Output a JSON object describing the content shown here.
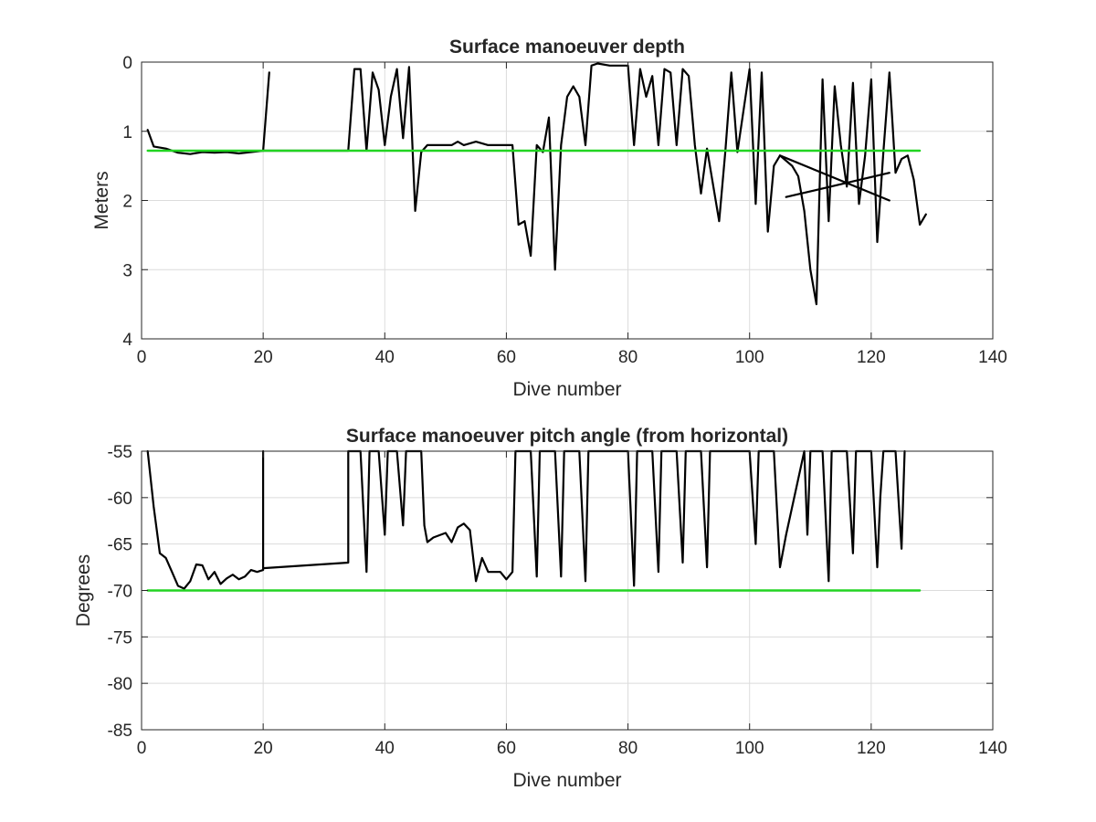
{
  "chart_data": [
    {
      "type": "line",
      "title": "Surface manoeuver depth",
      "xlabel": "Dive number",
      "ylabel": "Meters",
      "xlim": [
        0,
        140
      ],
      "ylim": [
        0,
        4
      ],
      "y_reversed": true,
      "grid": true,
      "xticks": [
        0,
        20,
        40,
        60,
        80,
        100,
        120,
        140
      ],
      "yticks": [
        0,
        1,
        2,
        3,
        4
      ],
      "series": [
        {
          "color": "#000000",
          "segments": [
            [
              [
                1,
                0.98
              ],
              [
                2,
                1.22
              ],
              [
                4,
                1.25
              ],
              [
                6,
                1.31
              ],
              [
                8,
                1.33
              ],
              [
                10,
                1.3
              ],
              [
                12,
                1.31
              ],
              [
                14,
                1.3
              ],
              [
                16,
                1.32
              ],
              [
                18,
                1.3
              ],
              [
                20,
                1.28
              ],
              [
                21,
                0.15
              ]
            ],
            [
              [
                20,
                1.28
              ],
              [
                34,
                1.28
              ],
              [
                35,
                0.1
              ],
              [
                36,
                0.1
              ],
              [
                37,
                1.28
              ],
              [
                38,
                0.15
              ],
              [
                39,
                0.4
              ],
              [
                40,
                1.2
              ],
              [
                41,
                0.5
              ],
              [
                42,
                0.1
              ],
              [
                43,
                1.1
              ],
              [
                44,
                0.07
              ],
              [
                45,
                2.15
              ],
              [
                46,
                1.3
              ],
              [
                47,
                1.2
              ],
              [
                49,
                1.2
              ],
              [
                51,
                1.2
              ],
              [
                52,
                1.15
              ],
              [
                53,
                1.2
              ],
              [
                55,
                1.15
              ],
              [
                57,
                1.2
              ],
              [
                59,
                1.2
              ],
              [
                61,
                1.2
              ],
              [
                62,
                2.35
              ],
              [
                63,
                2.3
              ],
              [
                64,
                2.8
              ],
              [
                65,
                1.2
              ],
              [
                66,
                1.3
              ],
              [
                67,
                0.8
              ],
              [
                68,
                3.0
              ],
              [
                69,
                1.2
              ],
              [
                70,
                0.5
              ],
              [
                71,
                0.35
              ],
              [
                72,
                0.5
              ],
              [
                73,
                1.2
              ],
              [
                74,
                0.05
              ],
              [
                75,
                0.02
              ],
              [
                77,
                0.05
              ],
              [
                80,
                0.05
              ],
              [
                81,
                1.2
              ],
              [
                82,
                0.1
              ],
              [
                83,
                0.5
              ],
              [
                84,
                0.2
              ],
              [
                85,
                1.2
              ],
              [
                86,
                0.1
              ],
              [
                87,
                0.15
              ],
              [
                88,
                1.2
              ],
              [
                89,
                0.1
              ],
              [
                90,
                0.2
              ],
              [
                91,
                1.2
              ],
              [
                92,
                1.9
              ],
              [
                93,
                1.25
              ],
              [
                95,
                2.3
              ],
              [
                96,
                1.3
              ],
              [
                97,
                0.15
              ],
              [
                98,
                1.3
              ],
              [
                100,
                0.1
              ],
              [
                101,
                2.05
              ],
              [
                102,
                0.15
              ],
              [
                103,
                2.45
              ],
              [
                104,
                1.5
              ],
              [
                105,
                1.35
              ],
              [
                107,
                1.5
              ],
              [
                108,
                1.65
              ],
              [
                109,
                2.15
              ],
              [
                110,
                3.0
              ],
              [
                111,
                3.5
              ],
              [
                112,
                0.25
              ],
              [
                113,
                2.3
              ],
              [
                114,
                0.35
              ],
              [
                115,
                1.2
              ],
              [
                116,
                1.8
              ],
              [
                117,
                0.3
              ],
              [
                118,
                2.05
              ],
              [
                119,
                1.35
              ],
              [
                120,
                0.25
              ],
              [
                121,
                2.6
              ],
              [
                122,
                1.3
              ],
              [
                123,
                0.15
              ],
              [
                124,
                1.6
              ],
              [
                125,
                1.4
              ],
              [
                126,
                1.35
              ],
              [
                127,
                1.7
              ],
              [
                128,
                2.35
              ],
              [
                129,
                2.2
              ]
            ],
            [
              [
                105,
                1.35
              ],
              [
                123,
                2.0
              ]
            ],
            [
              [
                106,
                1.95
              ],
              [
                123,
                1.6
              ]
            ]
          ]
        },
        {
          "color": "#22d422",
          "points": [
            [
              1,
              1.28
            ],
            [
              128,
              1.28
            ]
          ]
        }
      ]
    },
    {
      "type": "line",
      "title": "Surface manoeuver pitch angle (from horizontal)",
      "xlabel": "Dive number",
      "ylabel": "Degrees",
      "xlim": [
        0,
        140
      ],
      "ylim": [
        -85,
        -55
      ],
      "grid": true,
      "xticks": [
        0,
        20,
        40,
        60,
        80,
        100,
        120,
        140
      ],
      "yticks": [
        -55,
        -60,
        -65,
        -70,
        -75,
        -80,
        -85
      ],
      "series": [
        {
          "color": "#000000",
          "segments": [
            [
              [
                1,
                -55
              ],
              [
                2,
                -61
              ],
              [
                3,
                -66
              ],
              [
                4,
                -66.5
              ],
              [
                5,
                -68
              ],
              [
                6,
                -69.5
              ],
              [
                7,
                -69.8
              ],
              [
                8,
                -69
              ],
              [
                9,
                -67.2
              ],
              [
                10,
                -67.3
              ],
              [
                11,
                -68.8
              ],
              [
                12,
                -68
              ],
              [
                13,
                -69.3
              ],
              [
                14,
                -68.7
              ],
              [
                15,
                -68.3
              ],
              [
                16,
                -68.8
              ],
              [
                17,
                -68.5
              ],
              [
                18,
                -67.8
              ],
              [
                19,
                -68
              ],
              [
                20,
                -67.8
              ],
              [
                20,
                -55
              ]
            ],
            [
              [
                20,
                -67.6
              ],
              [
                34,
                -67
              ],
              [
                34,
                -55
              ],
              [
                35,
                -55
              ],
              [
                36,
                -55
              ],
              [
                37,
                -68
              ],
              [
                37.5,
                -55
              ],
              [
                38,
                -55
              ],
              [
                39,
                -55
              ],
              [
                40,
                -64
              ],
              [
                40.5,
                -55
              ],
              [
                42,
                -55
              ],
              [
                43,
                -63
              ],
              [
                43.5,
                -55
              ],
              [
                45,
                -55
              ],
              [
                46,
                -55
              ],
              [
                46.5,
                -63
              ],
              [
                47,
                -64.8
              ],
              [
                48,
                -64.3
              ],
              [
                50,
                -63.8
              ],
              [
                51,
                -64.8
              ],
              [
                52,
                -63.2
              ],
              [
                53,
                -62.8
              ],
              [
                54,
                -63.5
              ],
              [
                55,
                -69
              ],
              [
                56,
                -66.5
              ],
              [
                57,
                -68
              ],
              [
                59,
                -68
              ],
              [
                60,
                -68.8
              ],
              [
                61,
                -68
              ],
              [
                61.5,
                -55
              ],
              [
                64,
                -55
              ],
              [
                65,
                -68.5
              ],
              [
                65.5,
                -55
              ],
              [
                68,
                -55
              ],
              [
                69,
                -68.5
              ],
              [
                69.5,
                -55
              ],
              [
                72,
                -55
              ],
              [
                73,
                -69
              ],
              [
                73.5,
                -55
              ],
              [
                80,
                -55
              ],
              [
                81,
                -69.5
              ],
              [
                81.5,
                -55
              ],
              [
                84,
                -55
              ],
              [
                85,
                -68
              ],
              [
                85.5,
                -55
              ],
              [
                88,
                -55
              ],
              [
                89,
                -67
              ],
              [
                89.5,
                -55
              ],
              [
                92,
                -55
              ],
              [
                93,
                -67.5
              ],
              [
                93.5,
                -55
              ],
              [
                100,
                -55
              ],
              [
                101,
                -65
              ],
              [
                101.5,
                -55
              ],
              [
                104,
                -55
              ],
              [
                105,
                -67.5
              ],
              [
                106,
                -64
              ],
              [
                109,
                -55
              ],
              [
                109.5,
                -64
              ],
              [
                110,
                -55
              ],
              [
                112,
                -55
              ],
              [
                113,
                -69
              ],
              [
                113.5,
                -55
              ],
              [
                116,
                -55
              ],
              [
                117,
                -66
              ],
              [
                117.5,
                -55
              ],
              [
                120,
                -55
              ],
              [
                121,
                -67.5
              ],
              [
                121.5,
                -60
              ],
              [
                122,
                -55
              ],
              [
                124,
                -55
              ],
              [
                125,
                -65.5
              ],
              [
                125.5,
                -55
              ]
            ]
          ]
        },
        {
          "color": "#22d422",
          "points": [
            [
              1,
              -70
            ],
            [
              128,
              -70
            ]
          ]
        }
      ]
    }
  ]
}
